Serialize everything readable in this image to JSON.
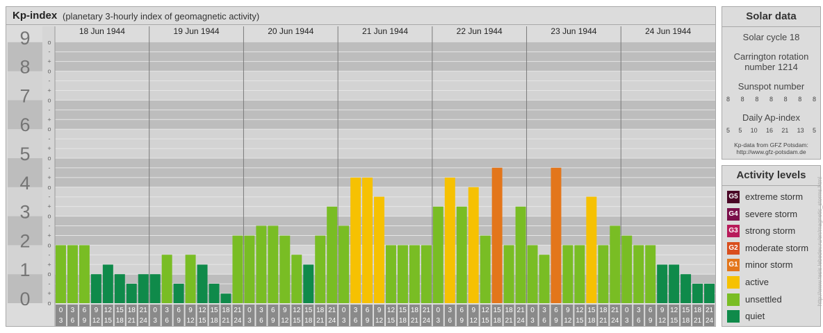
{
  "header": {
    "title": "Kp-index",
    "subtitle": "(planetary 3-hourly index of geomagnetic activity)"
  },
  "chart_data": {
    "type": "bar",
    "ylim": [
      0,
      9
    ],
    "yticks": [
      "0",
      "1",
      "2",
      "3",
      "4",
      "5",
      "6",
      "7",
      "8",
      "9"
    ],
    "minor_ticks": [
      "+",
      "-",
      "o"
    ],
    "days": [
      "18 Jun 1944",
      "19 Jun 1944",
      "20 Jun 1944",
      "21 Jun 1944",
      "22 Jun 1944",
      "23 Jun 1944",
      "24 Jun 1944"
    ],
    "interval_start": [
      "0",
      "3",
      "6",
      "9",
      "12",
      "15",
      "18",
      "21"
    ],
    "interval_end": [
      "3",
      "6",
      "9",
      "12",
      "15",
      "18",
      "21",
      "24"
    ],
    "values": [
      [
        2,
        2,
        2,
        1,
        1.33,
        1,
        0.67,
        1
      ],
      [
        1,
        1.67,
        0.67,
        1.67,
        1.33,
        0.67,
        0.33,
        2.33
      ],
      [
        2.33,
        2.67,
        2.67,
        2.33,
        1.67,
        1.33,
        2.33,
        3.33
      ],
      [
        2.67,
        4.33,
        4.33,
        3.67,
        2,
        2,
        2,
        2
      ],
      [
        3.33,
        4.33,
        3.33,
        4,
        2.33,
        4.67,
        2,
        3.33
      ],
      [
        2,
        1.67,
        4.67,
        2,
        2,
        3.67,
        2,
        2.67
      ],
      [
        2.33,
        2,
        2,
        1.33,
        1.33,
        1,
        0.67,
        0.67
      ]
    ],
    "colors": {
      "quiet": "#0f8a4a",
      "unsettled": "#79bd24",
      "active": "#f6c102",
      "minor_storm": "#e3761b",
      "moderate_storm": "#d94e1d",
      "strong_storm": "#b81b5a",
      "severe_storm": "#7a0e4a",
      "extreme_storm": "#4a0626"
    }
  },
  "solar": {
    "title": "Solar data",
    "cycle": "Solar cycle 18",
    "carrington_1": "Carrington rotation",
    "carrington_2": "number 1214",
    "sunspot_label": "Sunspot number",
    "sunspot": [
      "8",
      "8",
      "8",
      "8",
      "8",
      "8",
      "8"
    ],
    "ap_label": "Daily Ap-index",
    "ap": [
      "5",
      "5",
      "10",
      "16",
      "21",
      "13",
      "5"
    ],
    "source_1": "Kp-data from GFZ Potsdam:",
    "source_2": "http://www.gfz-potsdam.de"
  },
  "legend": {
    "title": "Activity levels",
    "items": [
      {
        "badge": "G5",
        "label": "extreme storm",
        "color": "#4a0626"
      },
      {
        "badge": "G4",
        "label": "severe storm",
        "color": "#7a0e4a"
      },
      {
        "badge": "G3",
        "label": "strong storm",
        "color": "#b81b5a"
      },
      {
        "badge": "G2",
        "label": "moderate storm",
        "color": "#d94e1d"
      },
      {
        "badge": "G1",
        "label": "minor storm",
        "color": "#e3761b"
      },
      {
        "badge": "",
        "label": "active",
        "color": "#f6c102"
      },
      {
        "badge": "",
        "label": "unsettled",
        "color": "#79bd24"
      },
      {
        "badge": "",
        "label": "quiet",
        "color": "#0f8a4a"
      }
    ]
  },
  "watermark": "http://www.tesis.lebedev.ru/en/magnetic_storms.html"
}
